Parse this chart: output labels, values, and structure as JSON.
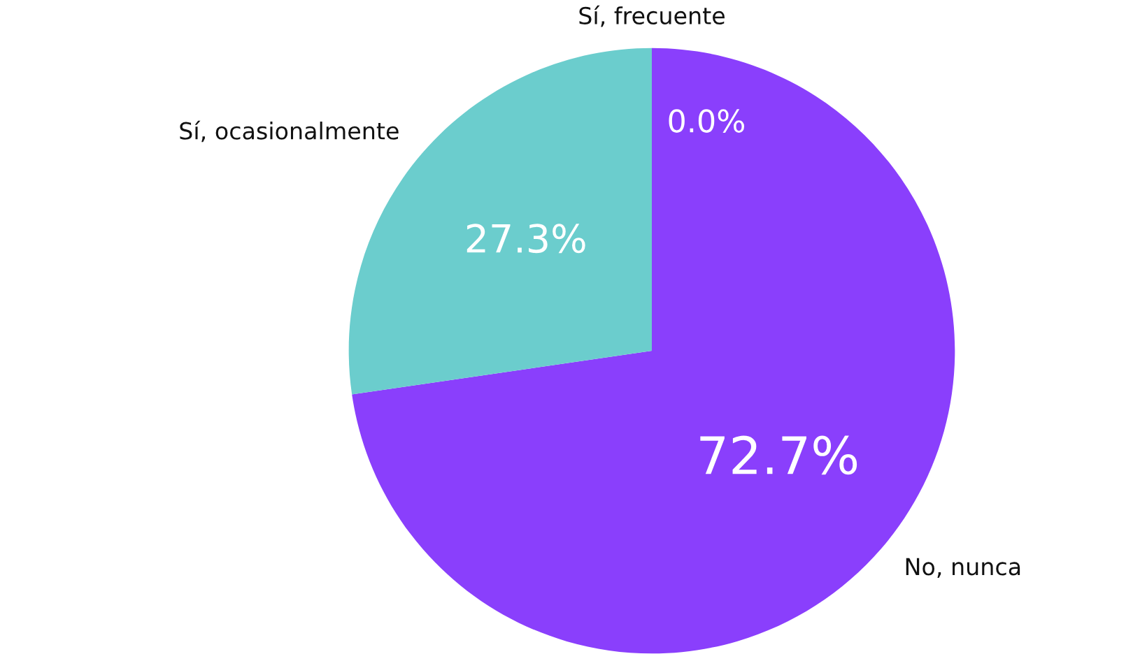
{
  "chart_data": {
    "type": "pie",
    "categories": [
      "Sí, frecuente",
      "No, nunca",
      "Sí, ocasionalmente"
    ],
    "values": [
      0.0,
      72.7,
      27.3
    ],
    "colors": [
      "#2a9d8f",
      "#8a3ffc",
      "#6bcdcd"
    ],
    "value_labels": [
      "0.0%",
      "72.7%",
      "27.3%"
    ],
    "legend": false
  }
}
